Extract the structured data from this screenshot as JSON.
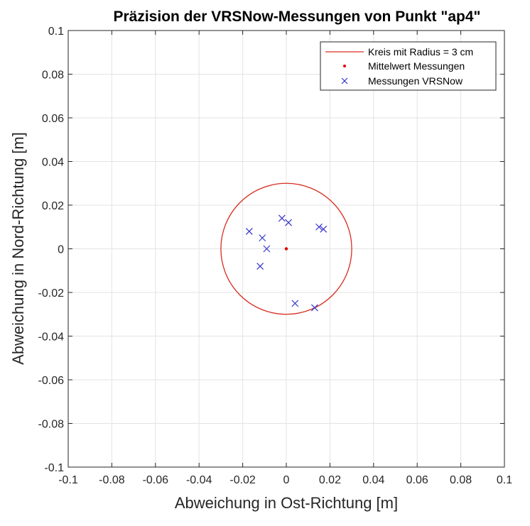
{
  "chart_data": {
    "type": "scatter",
    "title": "Präzision der VRSNow-Messungen von Punkt \"ap4\"",
    "xlabel": "Abweichung in Ost-Richtung [m]",
    "ylabel": "Abweichung in Nord-Richtung [m]",
    "xlim": [
      -0.1,
      0.1
    ],
    "ylim": [
      -0.1,
      0.1
    ],
    "xticks": [
      -0.1,
      -0.08,
      -0.06,
      -0.04,
      -0.02,
      0,
      0.02,
      0.04,
      0.06,
      0.08,
      0.1
    ],
    "yticks": [
      -0.1,
      -0.08,
      -0.06,
      -0.04,
      -0.02,
      0,
      0.02,
      0.04,
      0.06,
      0.08,
      0.1
    ],
    "xtick_labels": [
      "-0.1",
      "-0.08",
      "-0.06",
      "-0.04",
      "-0.02",
      "0",
      "0.02",
      "0.04",
      "0.06",
      "0.08",
      "0.1"
    ],
    "ytick_labels": [
      "-0.1",
      "-0.08",
      "-0.06",
      "-0.04",
      "-0.02",
      "0",
      "0.02",
      "0.04",
      "0.06",
      "0.08",
      "0.1"
    ],
    "grid": true,
    "legend_position": "top-right",
    "series": [
      {
        "name": "Kreis mit Radius = 3 cm",
        "kind": "circle",
        "center": [
          0,
          0
        ],
        "radius": 0.03,
        "color": "#d62d20"
      },
      {
        "name": "Mittelwert Messungen",
        "kind": "point",
        "marker": "dot",
        "color": "#e00000",
        "points": [
          [
            0,
            0
          ]
        ]
      },
      {
        "name": "Messungen VRSNow",
        "kind": "scatter",
        "marker": "x",
        "color": "#3333cc",
        "points": [
          [
            -0.017,
            0.008
          ],
          [
            -0.011,
            0.005
          ],
          [
            -0.009,
            0.0
          ],
          [
            -0.012,
            -0.008
          ],
          [
            -0.002,
            0.014
          ],
          [
            0.001,
            0.012
          ],
          [
            0.015,
            0.01
          ],
          [
            0.017,
            0.009
          ],
          [
            0.004,
            -0.025
          ],
          [
            0.013,
            -0.027
          ]
        ]
      }
    ]
  }
}
